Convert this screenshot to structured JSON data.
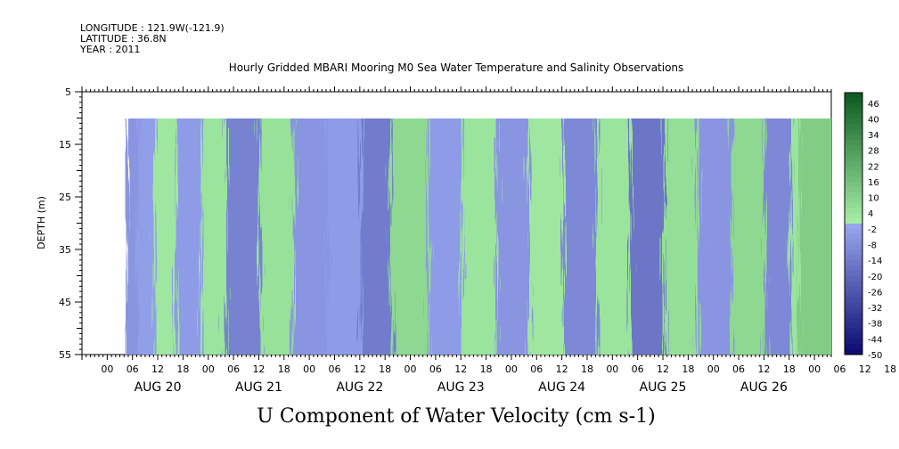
{
  "header": {
    "longitude": "LONGITUDE : 121.9W(-121.9)",
    "latitude": "LATITUDE : 36.8N",
    "year": "YEAR : 2011"
  },
  "chart_data": {
    "type": "heatmap",
    "title": "Hourly Gridded MBARI Mooring M0 Sea Water Temperature and Salinity Observations",
    "xlabel": "U Component of Water Velocity (cm s-1)",
    "ylabel": "DEPTH (m)",
    "y_axis": {
      "range": [
        55,
        5
      ],
      "inverted": true,
      "ticks": [
        5,
        15,
        25,
        35,
        45,
        55
      ]
    },
    "x_axis": {
      "units": "hours",
      "range_hours": [
        -12,
        166
      ],
      "hour_tick_labels": [
        "00",
        "06",
        "12",
        "18",
        "00",
        "06",
        "12",
        "18",
        "00",
        "06",
        "12",
        "18",
        "00",
        "06",
        "12",
        "18",
        "00",
        "06",
        "12",
        "18",
        "00",
        "06",
        "12",
        "18",
        "00",
        "06",
        "12",
        "18",
        "00",
        "06",
        "12",
        "18"
      ],
      "day_labels": [
        "AUG 20",
        "AUG 21",
        "AUG 22",
        "AUG 23",
        "AUG 24",
        "AUG 25",
        "AUG 26"
      ],
      "data_start": "AUG 20 06",
      "data_end": "AUG 26 ~22"
    },
    "depth_range_data": [
      10,
      55
    ],
    "colorbar": {
      "range": [
        -50,
        50
      ],
      "step": 2,
      "tick_labels": [
        "46",
        "40",
        "34",
        "28",
        "22",
        "16",
        "10",
        "4",
        "-2",
        "-8",
        "-14",
        "-20",
        "-26",
        "-32",
        "-38",
        "-44",
        "-50"
      ],
      "low_color": "#0a0a6e",
      "mid_low_color": "#9aa8f0",
      "mid_high_color": "#a8f0a8",
      "high_color": "#0a5a1e"
    },
    "velocity_bands": [
      {
        "hours": [
          0,
          3
        ],
        "u_cm_s": -6
      },
      {
        "hours": [
          3,
          7
        ],
        "u_cm_s": -3
      },
      {
        "hours": [
          7,
          12
        ],
        "u_cm_s": 3
      },
      {
        "hours": [
          12,
          18
        ],
        "u_cm_s": -4
      },
      {
        "hours": [
          18,
          24
        ],
        "u_cm_s": 4
      },
      {
        "hours": [
          24,
          32
        ],
        "u_cm_s": -12
      },
      {
        "hours": [
          32,
          40
        ],
        "u_cm_s": 5
      },
      {
        "hours": [
          40,
          48
        ],
        "u_cm_s": -6
      },
      {
        "hours": [
          48,
          56
        ],
        "u_cm_s": -4
      },
      {
        "hours": [
          56,
          63
        ],
        "u_cm_s": -14
      },
      {
        "hours": [
          63,
          72
        ],
        "u_cm_s": 8
      },
      {
        "hours": [
          72,
          80
        ],
        "u_cm_s": -4
      },
      {
        "hours": [
          80,
          88
        ],
        "u_cm_s": 4
      },
      {
        "hours": [
          88,
          96
        ],
        "u_cm_s": -6
      },
      {
        "hours": [
          96,
          104
        ],
        "u_cm_s": 3
      },
      {
        "hours": [
          104,
          112
        ],
        "u_cm_s": -10
      },
      {
        "hours": [
          112,
          120
        ],
        "u_cm_s": 4
      },
      {
        "hours": [
          120,
          128
        ],
        "u_cm_s": -16
      },
      {
        "hours": [
          128,
          136
        ],
        "u_cm_s": 6
      },
      {
        "hours": [
          136,
          144
        ],
        "u_cm_s": -6
      },
      {
        "hours": [
          144,
          152
        ],
        "u_cm_s": 8
      },
      {
        "hours": [
          152,
          158
        ],
        "u_cm_s": -10
      },
      {
        "hours": [
          158,
          160
        ],
        "u_cm_s": 4
      },
      {
        "hours": [
          160,
          166
        ],
        "u_cm_s": 12
      }
    ],
    "grid": false
  }
}
